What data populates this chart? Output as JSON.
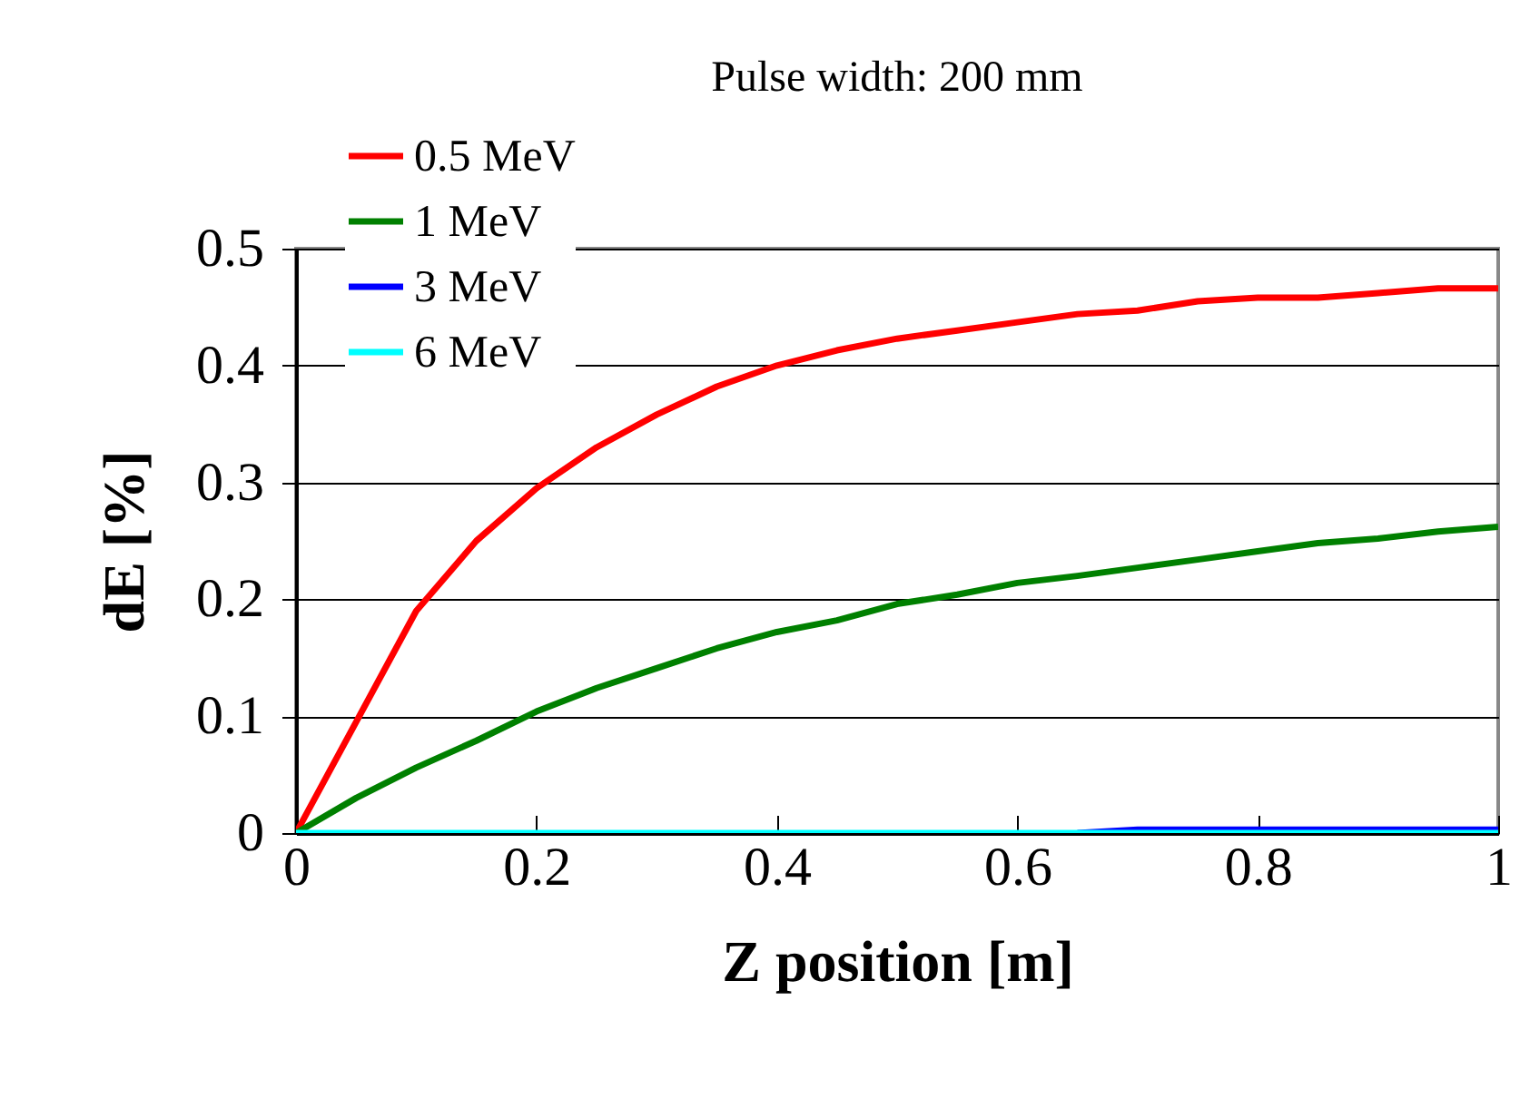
{
  "chart_data": {
    "type": "line",
    "title": "Pulse width: 200 mm",
    "xlabel": "Z position [m]",
    "ylabel": "dE [%]",
    "x": [
      0,
      0.05,
      0.1,
      0.15,
      0.2,
      0.25,
      0.3,
      0.35,
      0.4,
      0.45,
      0.5,
      0.55,
      0.6,
      0.65,
      0.7,
      0.75,
      0.8,
      0.85,
      0.9,
      0.95,
      1
    ],
    "series": [
      {
        "name": "0.5 MeV",
        "color": "#ff0000",
        "values": [
          0,
          0.095,
          0.19,
          0.25,
          0.295,
          0.33,
          0.358,
          0.382,
          0.4,
          0.413,
          0.423,
          0.43,
          0.437,
          0.444,
          0.447,
          0.455,
          0.458,
          0.458,
          0.462,
          0.466,
          0.466
        ]
      },
      {
        "name": "1 MeV",
        "color": "#008000",
        "values": [
          0,
          0.03,
          0.056,
          0.079,
          0.104,
          0.124,
          0.141,
          0.158,
          0.172,
          0.182,
          0.196,
          0.204,
          0.214,
          0.22,
          0.227,
          0.234,
          0.241,
          0.248,
          0.252,
          0.258,
          0.262
        ]
      },
      {
        "name": "3 MeV",
        "color": "#0000ff",
        "values": [
          null,
          null,
          null,
          null,
          null,
          null,
          null,
          null,
          null,
          null,
          null,
          null,
          null,
          0,
          0.003,
          0.003,
          0.003,
          0.003,
          0.003,
          0.003,
          0.003
        ]
      },
      {
        "name": "6 MeV",
        "color": "#00ffff",
        "values": [
          0,
          0,
          0,
          0,
          0,
          0,
          0,
          0,
          0,
          0,
          0,
          0,
          0,
          0,
          0,
          0,
          0,
          0,
          0,
          0,
          0
        ]
      }
    ],
    "xlim": [
      0,
      1
    ],
    "xticks": [
      0,
      0.2,
      0.4,
      0.6,
      0.8,
      1
    ],
    "ylim": [
      0,
      0.5
    ],
    "yticks": [
      0,
      0.1,
      0.2,
      0.3,
      0.4,
      0.5
    ],
    "grid": "y",
    "legend": "top left",
    "line_style": "solid",
    "marker": "none"
  }
}
